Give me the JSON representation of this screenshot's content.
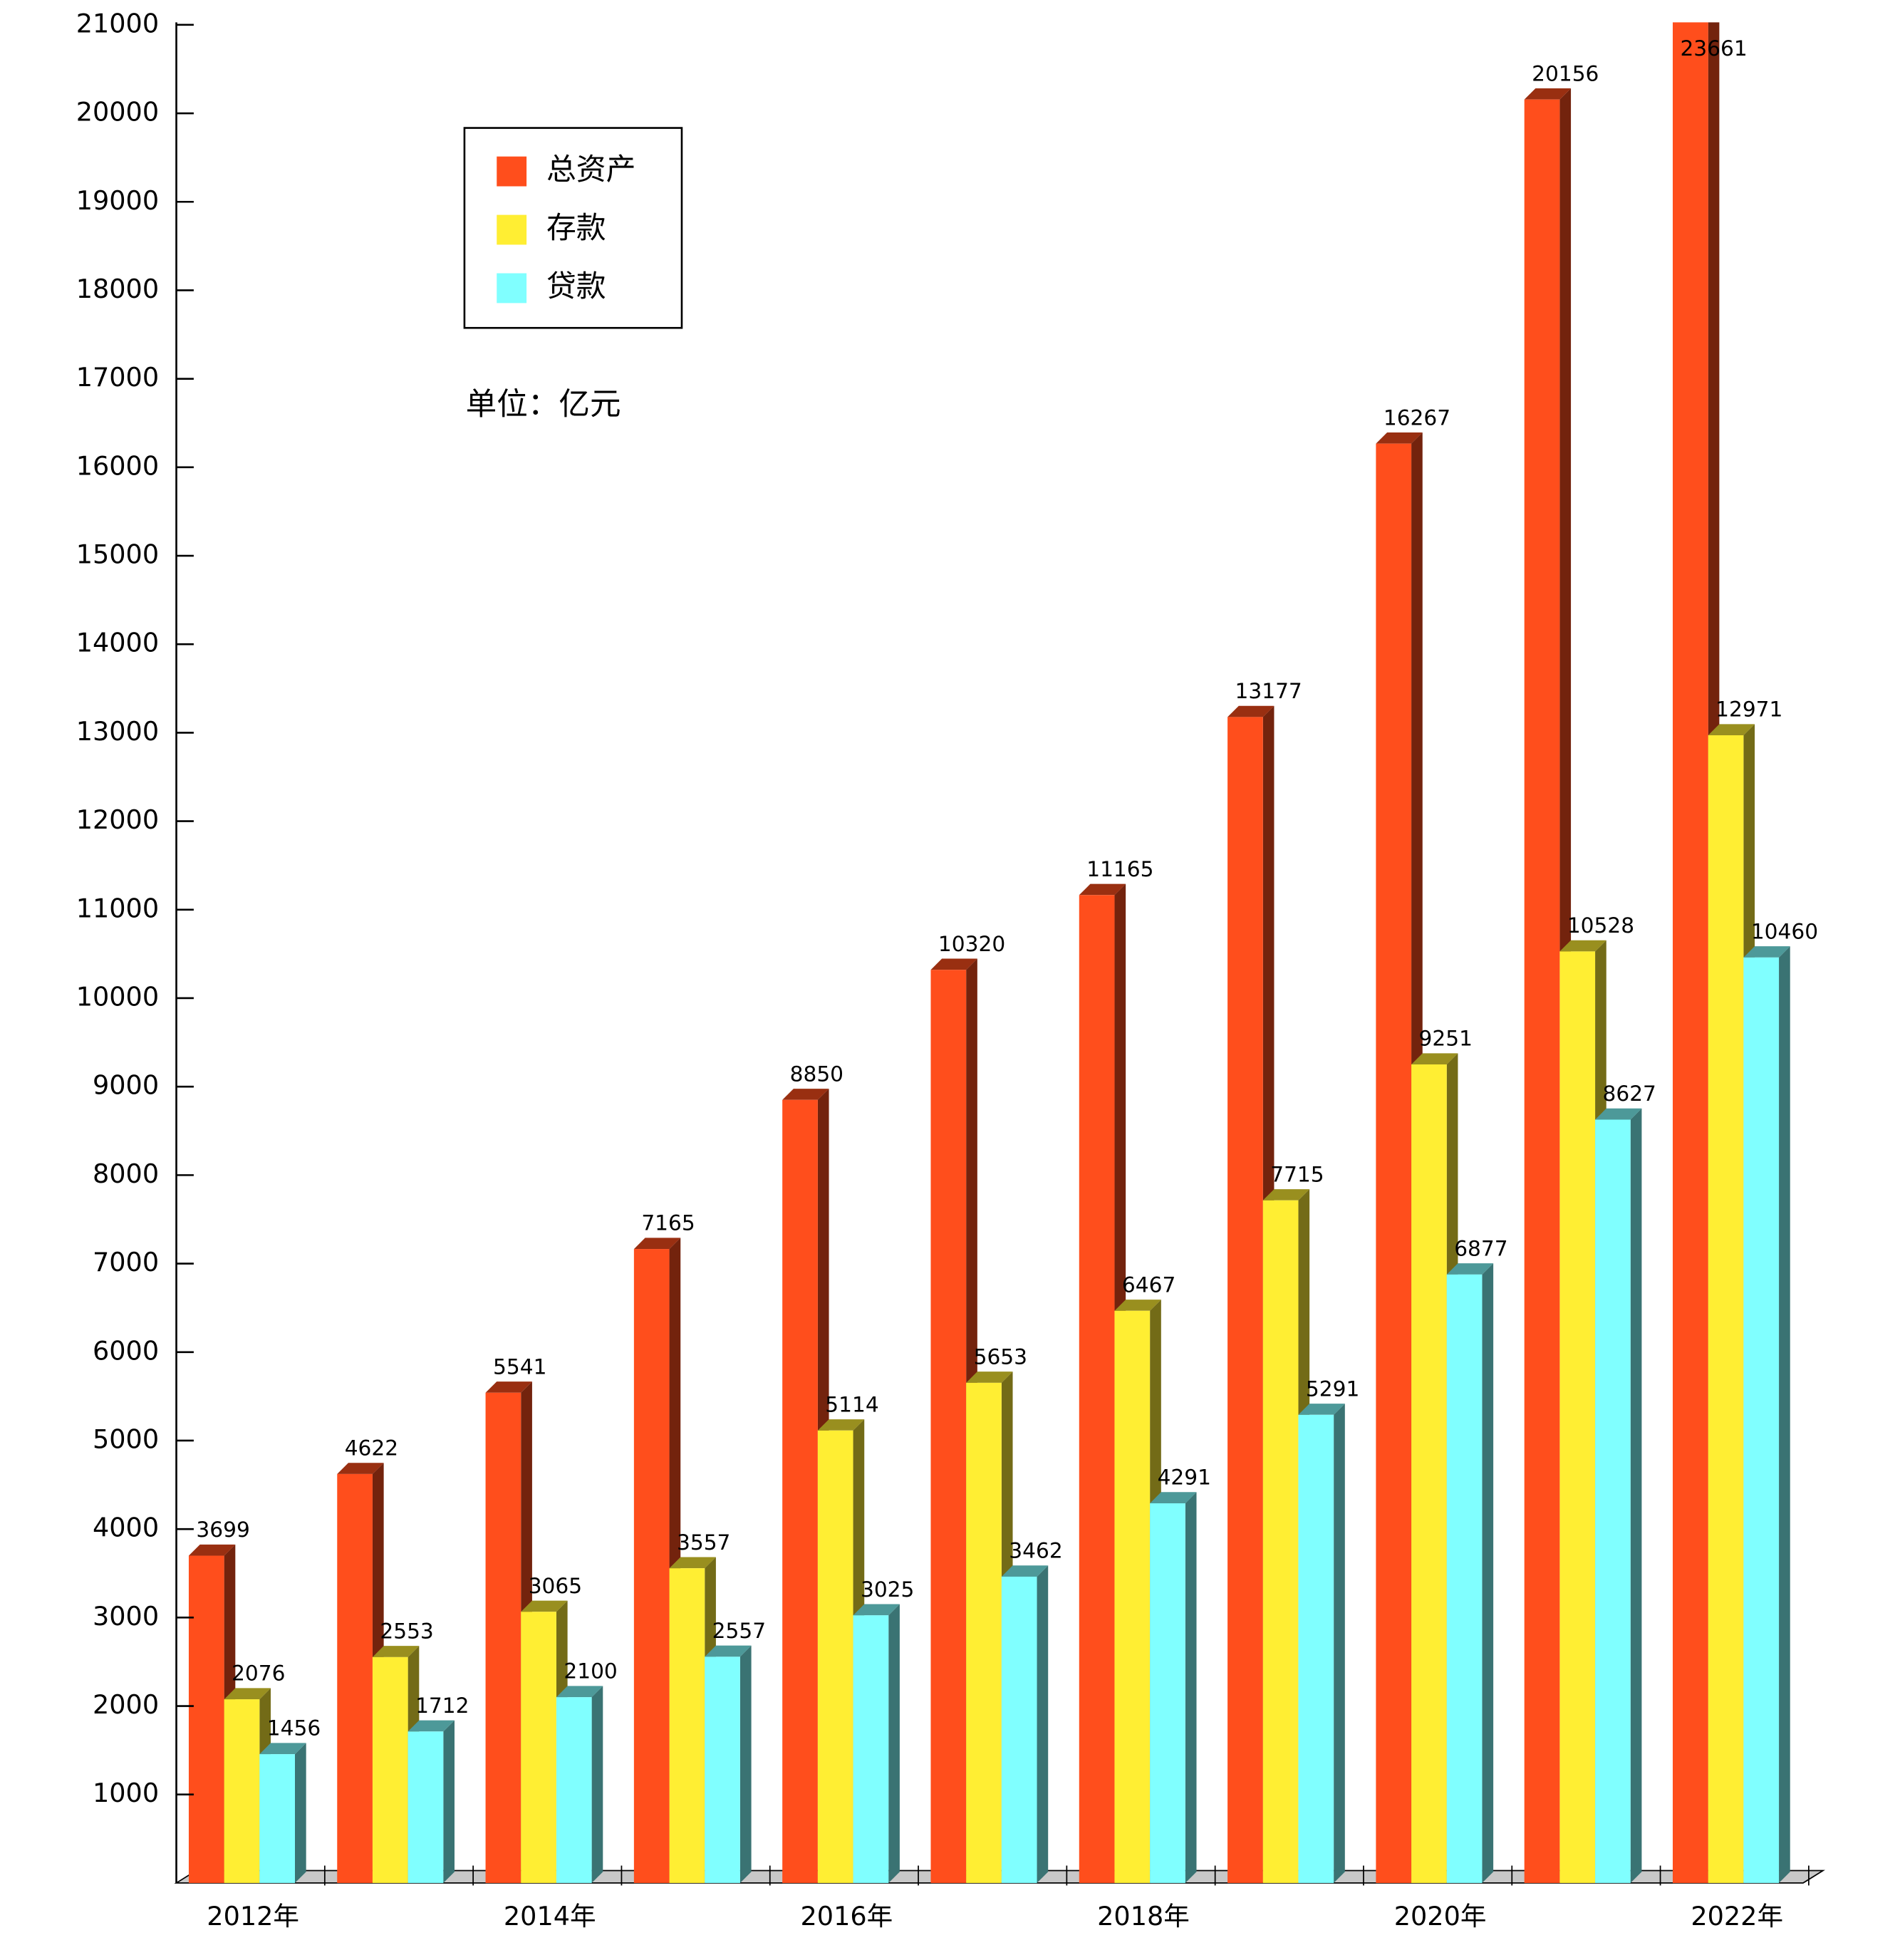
{
  "chart_data": {
    "type": "bar3d",
    "unit_note": "单位：亿元",
    "categories": [
      "2012年",
      null,
      "2014年",
      null,
      "2016年",
      null,
      "2018年",
      null,
      "2020年",
      null,
      "2022年"
    ],
    "series": [
      {
        "name": "总资产",
        "color": "#ff4e1c",
        "values": [
          3699,
          4622,
          5541,
          7165,
          8850,
          10320,
          11165,
          13177,
          16267,
          20156,
          23661
        ]
      },
      {
        "name": "存款",
        "color": "#ffee33",
        "values": [
          2076,
          2553,
          3065,
          3557,
          5114,
          5653,
          6467,
          7715,
          9251,
          10528,
          12971
        ]
      },
      {
        "name": "贷款",
        "color": "#80ffff",
        "values": [
          1456,
          1712,
          2100,
          2557,
          3025,
          3462,
          4291,
          5291,
          6877,
          8627,
          10460
        ]
      }
    ],
    "ylim": [
      0,
      21000
    ],
    "yticks": [
      1000,
      2000,
      3000,
      4000,
      5000,
      6000,
      7000,
      8000,
      9000,
      10000,
      11000,
      12000,
      13000,
      14000,
      15000,
      16000,
      17000,
      18000,
      19000,
      20000,
      21000
    ],
    "grid": false
  }
}
